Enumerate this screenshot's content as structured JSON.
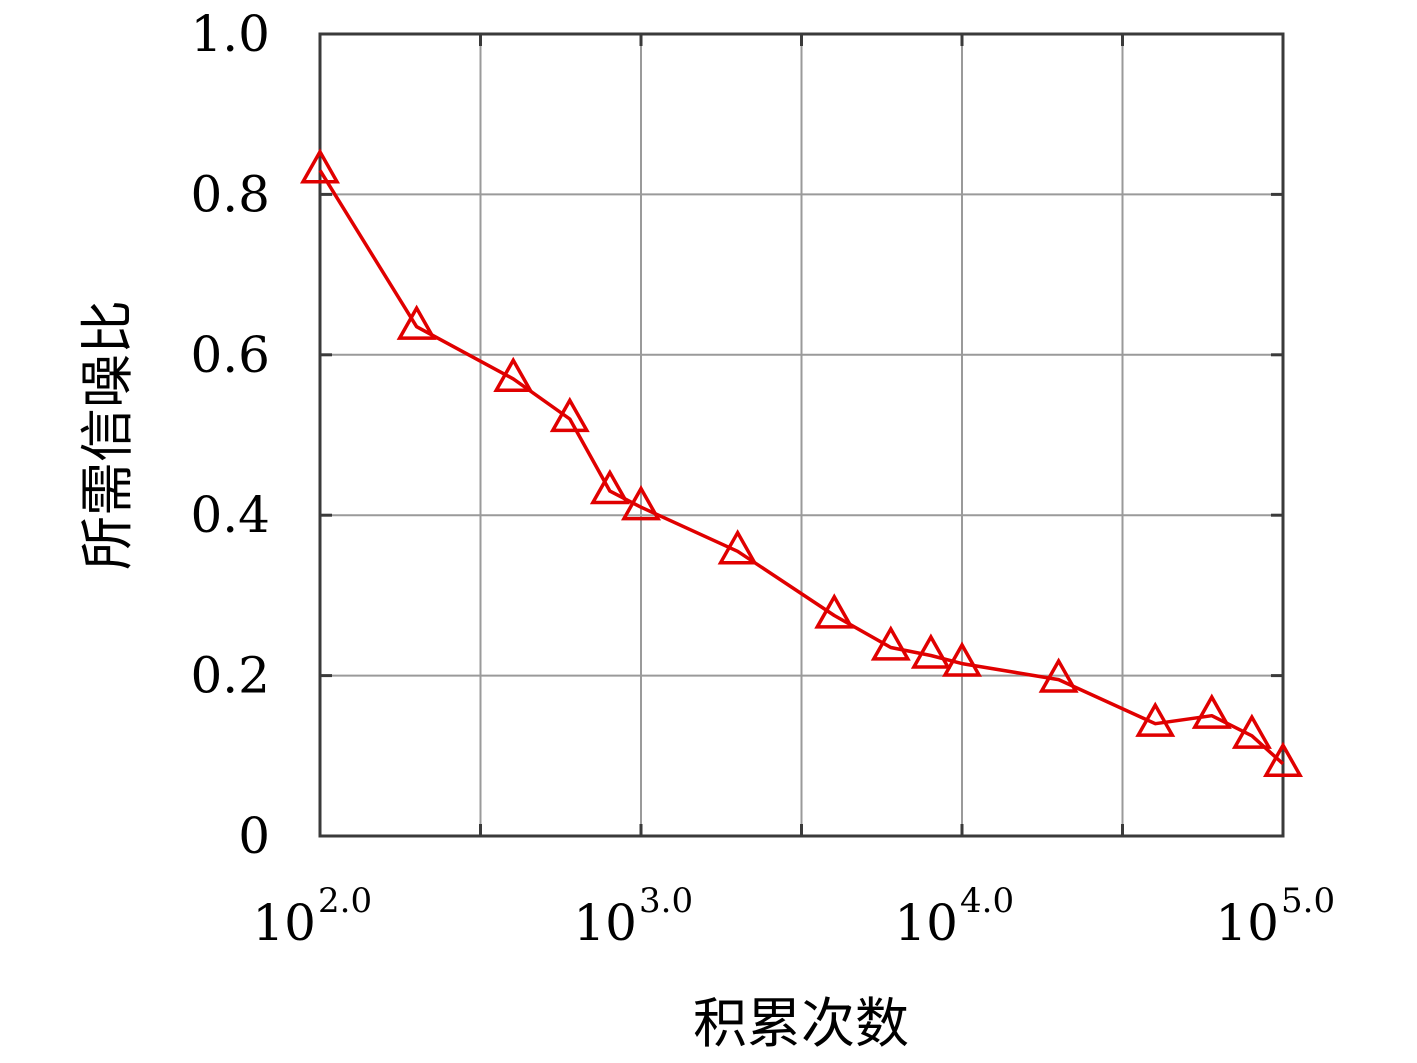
{
  "chart_data": {
    "type": "line",
    "xlabel": "积累次数",
    "ylabel": "所需信噪比",
    "x_scale": "log10",
    "xlim": [
      100,
      100000
    ],
    "ylim": [
      0,
      1.0
    ],
    "grid": true,
    "x_ticks": [
      {
        "value": 100,
        "base": "10",
        "exp": "2.0"
      },
      {
        "value": 1000,
        "base": "10",
        "exp": "3.0"
      },
      {
        "value": 10000,
        "base": "10",
        "exp": "4.0"
      },
      {
        "value": 100000,
        "base": "10",
        "exp": "5.0"
      }
    ],
    "y_ticks": [
      {
        "value": 0,
        "label": "0"
      },
      {
        "value": 0.2,
        "label": "0.2"
      },
      {
        "value": 0.4,
        "label": "0.4"
      },
      {
        "value": 0.6,
        "label": "0.6"
      },
      {
        "value": 0.8,
        "label": "0.8"
      },
      {
        "value": 1.0,
        "label": "1.0"
      }
    ],
    "series": [
      {
        "color": "#e00000",
        "marker": "triangle",
        "x": [
          100,
          200,
          400,
          600,
          800,
          1000,
          2000,
          4000,
          6000,
          8000,
          10000,
          20000,
          40000,
          60000,
          80000,
          100000
        ],
        "y": [
          0.83,
          0.635,
          0.57,
          0.52,
          0.43,
          0.41,
          0.355,
          0.275,
          0.235,
          0.225,
          0.215,
          0.195,
          0.14,
          0.15,
          0.125,
          0.09
        ]
      }
    ]
  }
}
